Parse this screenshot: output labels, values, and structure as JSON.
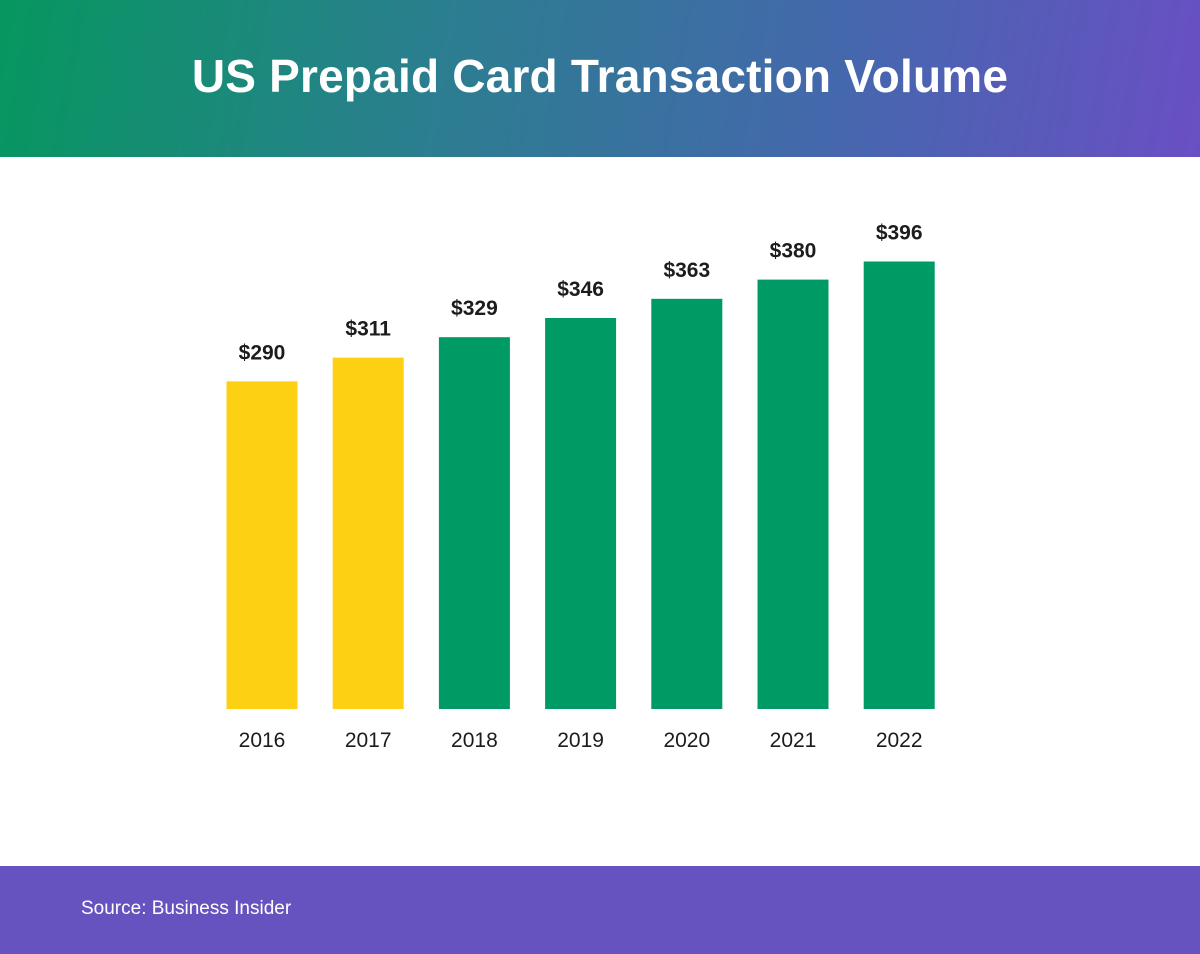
{
  "header": {
    "title": "US Prepaid Card Transaction Volume"
  },
  "footer": {
    "source": "Source: Business Insider"
  },
  "colors": {
    "actual": "#fed013",
    "forecast": "#009a64",
    "text": "#1c1c1c"
  },
  "chart_data": {
    "type": "bar",
    "title": "US Prepaid Card Transaction Volume",
    "categories": [
      "2016",
      "2017",
      "2018",
      "2019",
      "2020",
      "2021",
      "2022"
    ],
    "values": [
      290,
      311,
      329,
      346,
      363,
      380,
      396
    ],
    "labels": [
      "$290",
      "$311",
      "$329",
      "$346",
      "$363",
      "$380",
      "$396"
    ],
    "bar_colors": [
      "#fed013",
      "#fed013",
      "#009a64",
      "#009a64",
      "#009a64",
      "#009a64",
      "#009a64"
    ],
    "xlabel": "",
    "ylabel": "",
    "grid": false,
    "legend": "none"
  }
}
